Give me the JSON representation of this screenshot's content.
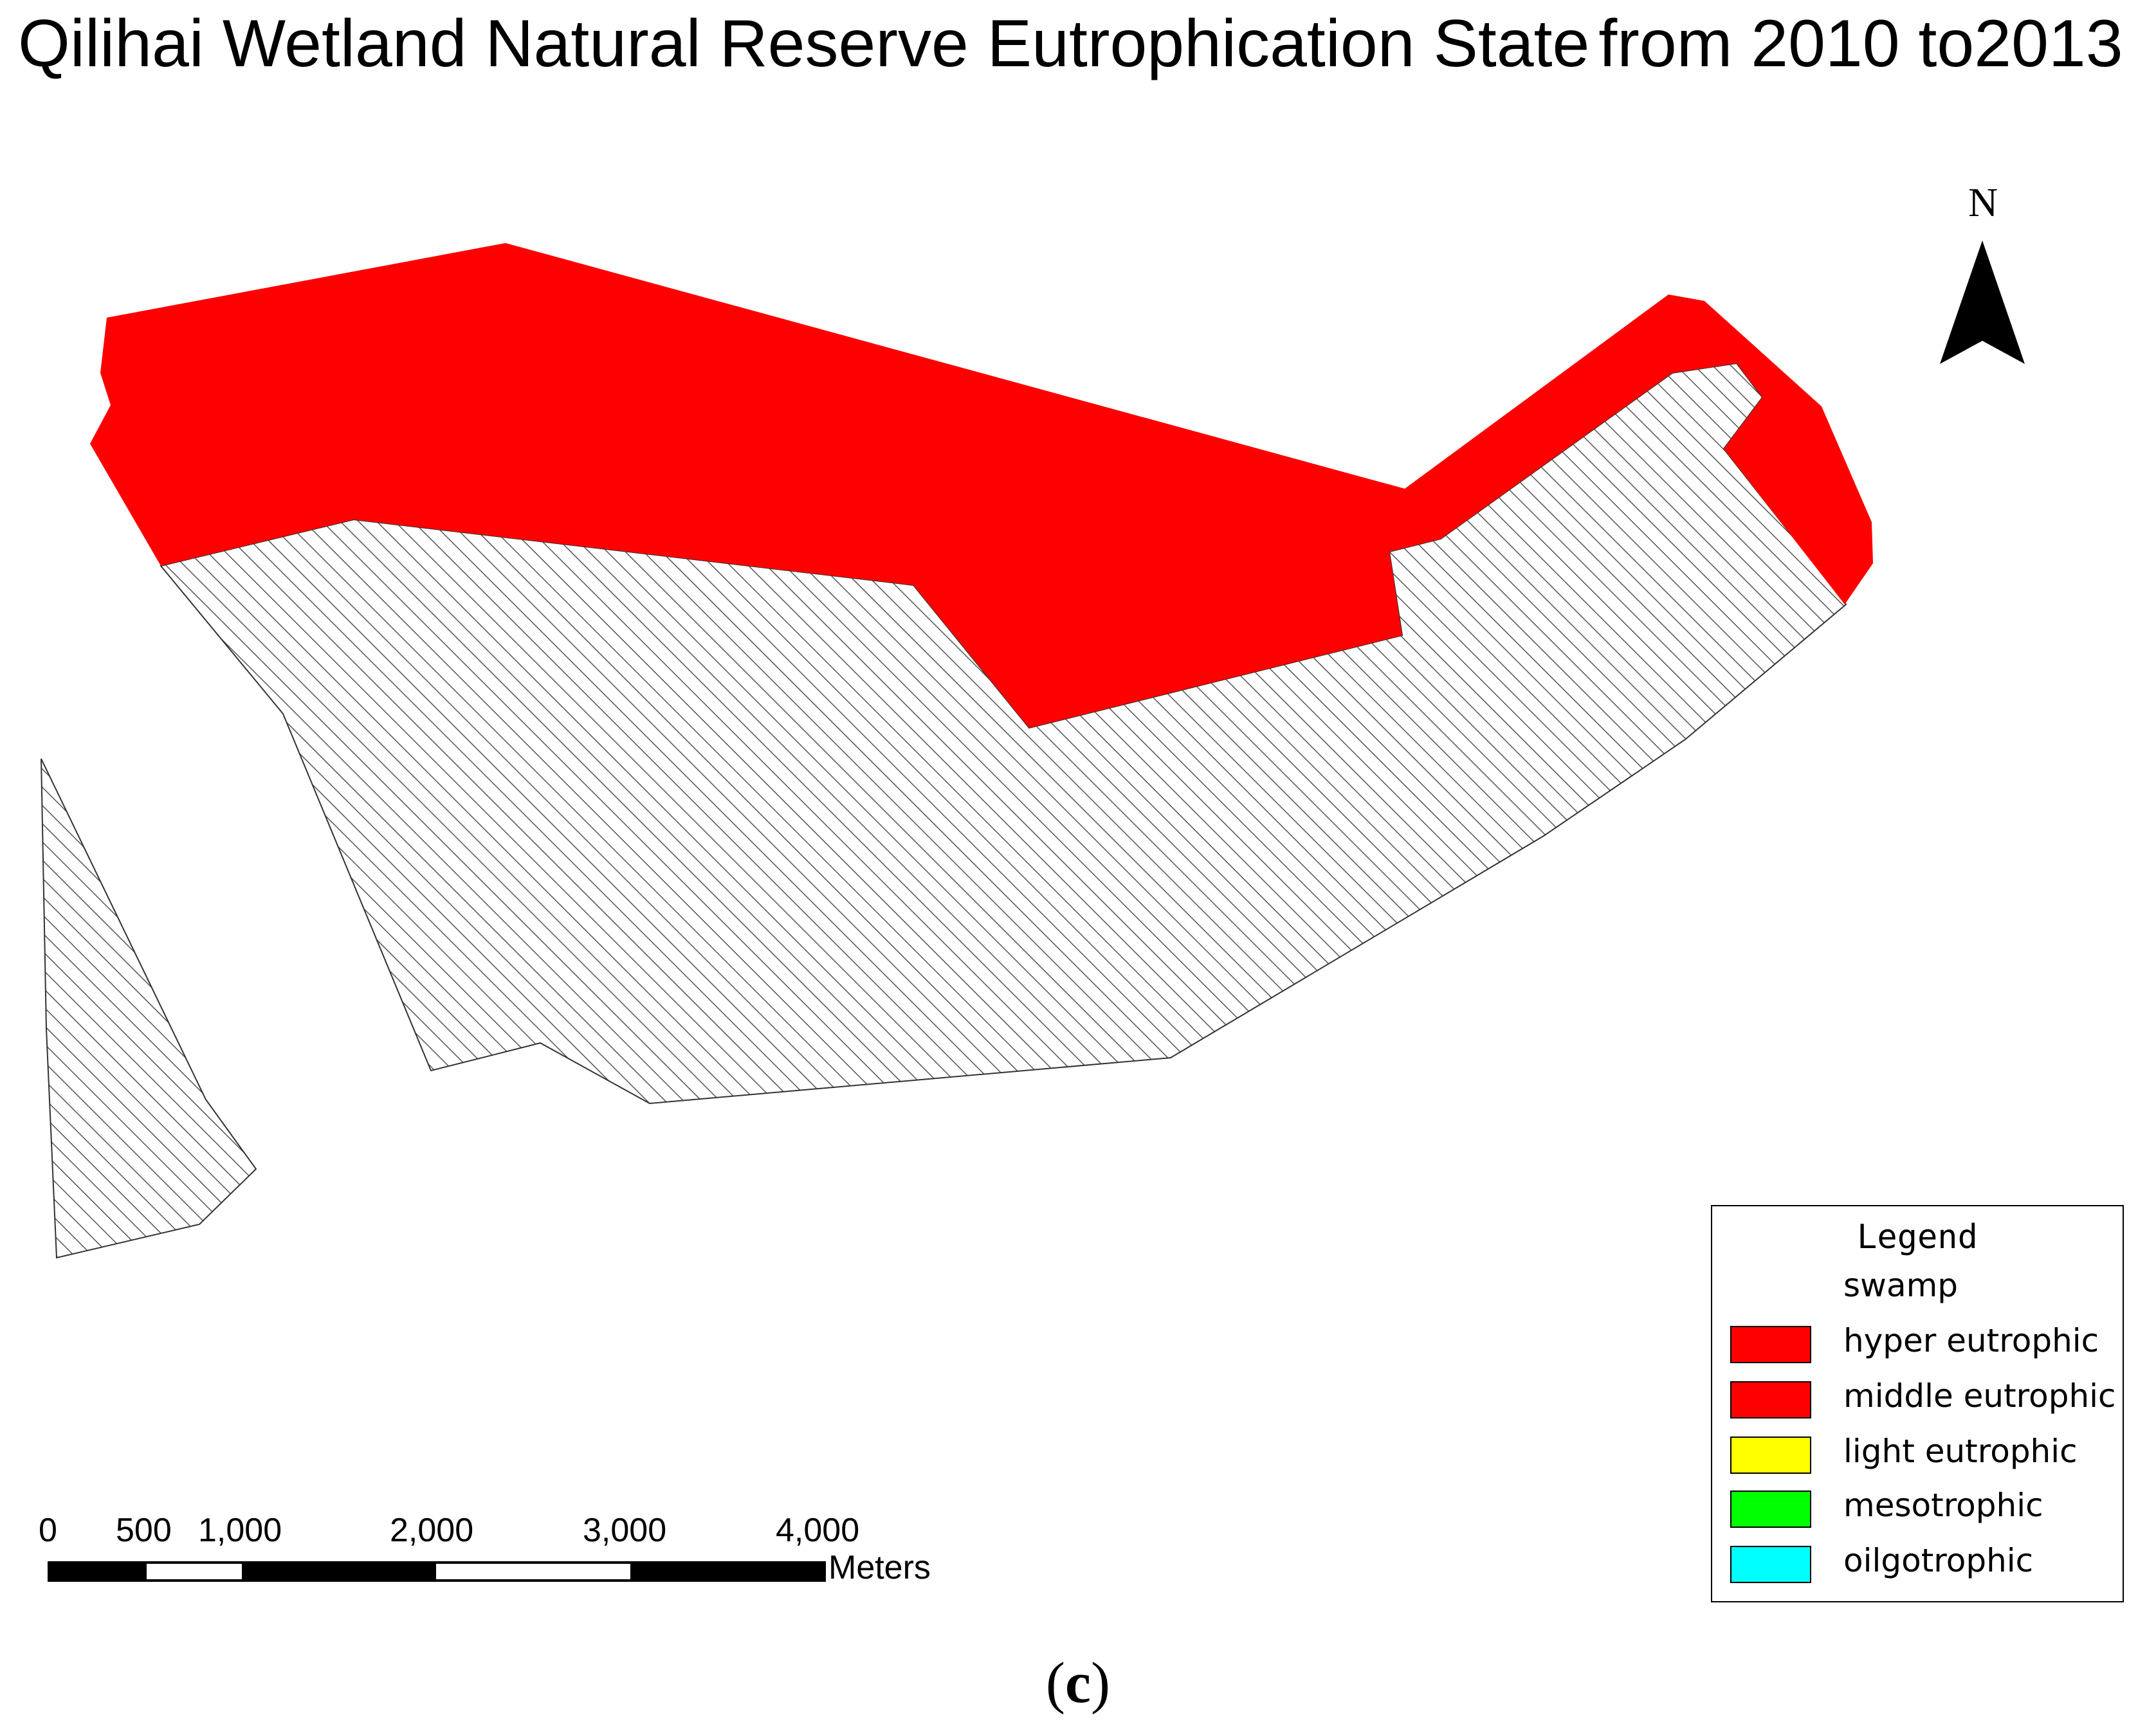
{
  "title": {
    "part1": "Qilihai Wetland Natural Reserve Eutrophication State",
    "part2": "from 2010 to2013"
  },
  "north_arrow": {
    "label": "N"
  },
  "colors": {
    "swamp_hatch": "#555555",
    "hyper_eutrophic": "#ff0000",
    "middle_eutrophic": "#ff0000",
    "light_eutrophic": "#ffff00",
    "mesotrophic": "#00ff00",
    "oligotrophic": "#00ffff"
  },
  "legend": {
    "title": "Legend",
    "items": [
      {
        "label": "swamp",
        "fill": "hatch"
      },
      {
        "label": "hyper eutrophic",
        "fill": "#ff0000"
      },
      {
        "label": "middle eutrophic",
        "fill": "#ff0000"
      },
      {
        "label": "light eutrophic",
        "fill": "#ffff00"
      },
      {
        "label": "mesotrophic",
        "fill": "#00ff00"
      },
      {
        "label": "oilgotrophic",
        "fill": "#00ffff"
      }
    ]
  },
  "scale_bar": {
    "ticks": [
      "0",
      "500",
      "1,000",
      "2,000",
      "3,000",
      "4,000"
    ],
    "unit": "Meters"
  },
  "caption": {
    "open": "(",
    "letter": "c",
    "close": ")"
  }
}
